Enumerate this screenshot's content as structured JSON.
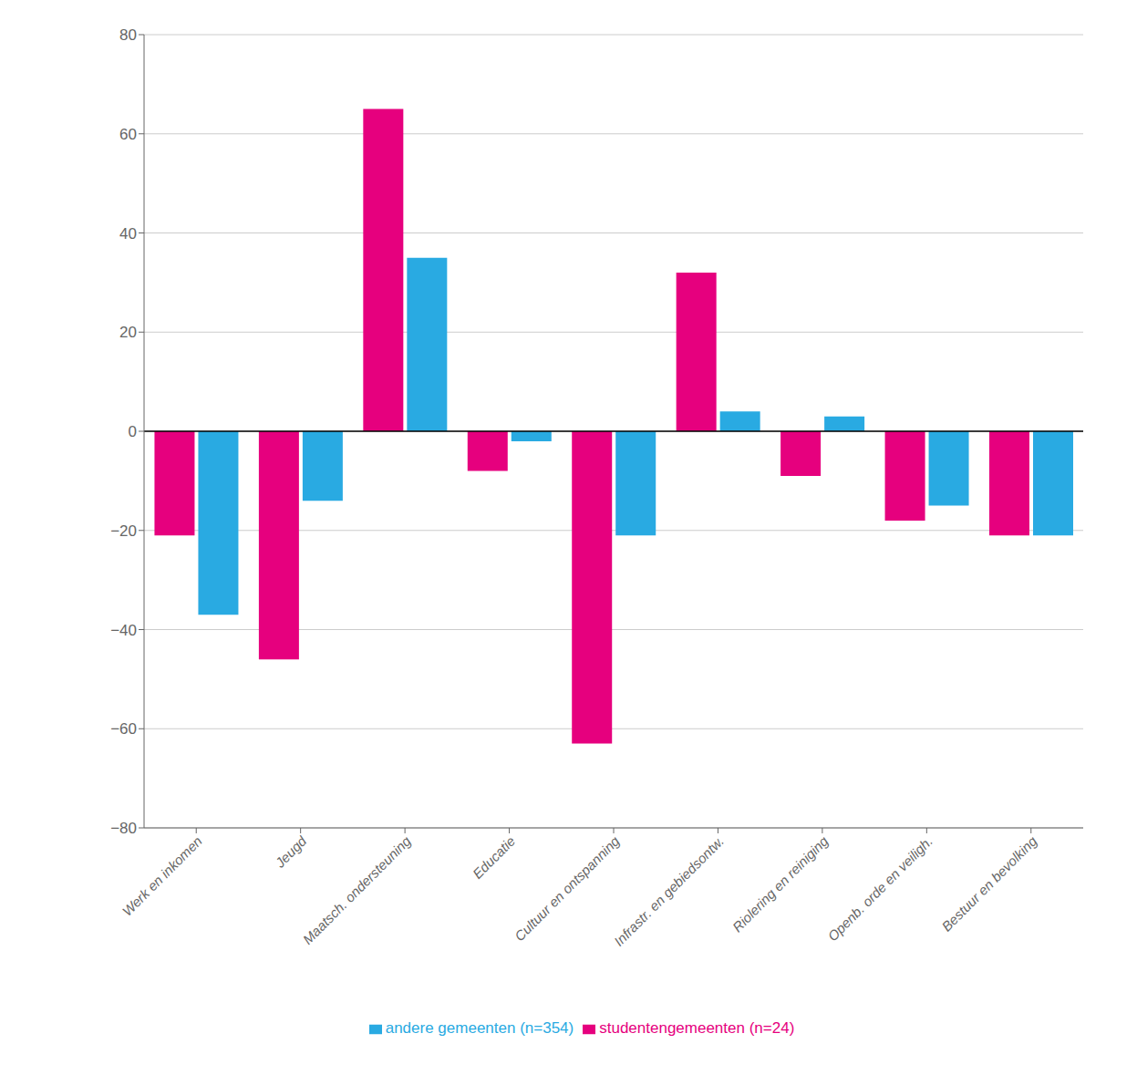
{
  "chart_data": {
    "type": "bar",
    "categories": [
      "Werk en inkomen",
      "Jeugd",
      "Maatsch. ondersteuning",
      "Educatie",
      "Cultuur en ontspanning",
      "Infrastr. en gebiedsontw.",
      "Riolering en reiniging",
      "Openb. orde en veiligh.",
      "Bestuur en bevolking"
    ],
    "series": [
      {
        "name": "studentengemeenten (n=24)",
        "color": "#E6007E",
        "values": [
          -21,
          -46,
          65,
          -8,
          -63,
          32,
          -9,
          -18,
          -21
        ]
      },
      {
        "name": "andere gemeenten (n=354)",
        "color": "#29AAE2",
        "values": [
          -37,
          -14,
          35,
          -2,
          -21,
          4,
          3,
          -15,
          -21
        ]
      }
    ],
    "ylim": [
      -80,
      80
    ],
    "yticks": [
      {
        "value": -80,
        "label": "−80"
      },
      {
        "value": -60,
        "label": "−60"
      },
      {
        "value": -40,
        "label": "−40"
      },
      {
        "value": -20,
        "label": "−20"
      },
      0,
      20,
      40,
      60,
      80
    ],
    "grid": true,
    "legend": "bottom"
  }
}
